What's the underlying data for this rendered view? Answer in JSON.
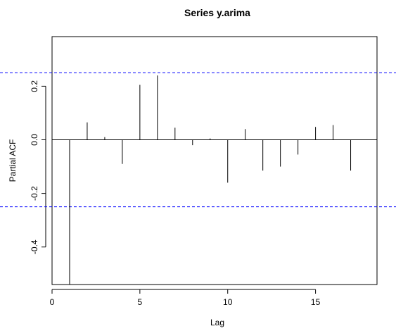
{
  "chart_data": {
    "type": "bar",
    "title": "Series  y.arima",
    "xlabel": "Lag",
    "ylabel": "Partial ACF",
    "xlim": [
      0,
      18.5
    ],
    "ylim": [
      -0.54,
      0.385
    ],
    "x_ticks": [
      0,
      5,
      10,
      15
    ],
    "y_ticks": [
      -0.4,
      -0.2,
      0.0,
      0.2
    ],
    "x_tick_labels": [
      "0",
      "5",
      "10",
      "15"
    ],
    "y_tick_labels": [
      "-0.4",
      "-0.2",
      "0.0",
      "0.2"
    ],
    "confidence_bounds": [
      0.25,
      -0.25
    ],
    "bound_color": "#0000ff",
    "lags": [
      1,
      2,
      3,
      4,
      5,
      6,
      7,
      8,
      9,
      10,
      11,
      12,
      13,
      14,
      15,
      16,
      17
    ],
    "values": [
      -0.54,
      0.065,
      0.01,
      -0.09,
      0.205,
      0.24,
      0.045,
      -0.02,
      0.005,
      -0.16,
      0.04,
      -0.115,
      -0.1,
      -0.055,
      0.048,
      0.055,
      -0.115
    ]
  }
}
